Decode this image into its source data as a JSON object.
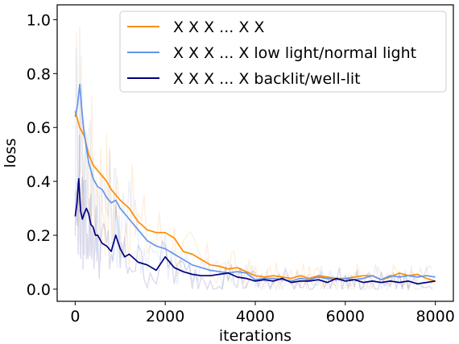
{
  "chart_data": {
    "type": "line",
    "xlabel": "iterations",
    "ylabel": "loss",
    "xlim": [
      -400,
      8400
    ],
    "ylim": [
      -0.045,
      1.055
    ],
    "x_ticks": [
      0,
      2000,
      4000,
      6000,
      8000
    ],
    "y_ticks": [
      0.0,
      0.2,
      0.4,
      0.6,
      0.8,
      1.0
    ],
    "x_tick_labels": [
      "0",
      "2000",
      "4000",
      "6000",
      "8000"
    ],
    "y_tick_labels": [
      "0.0",
      "0.2",
      "0.4",
      "0.6",
      "0.8",
      "1.0"
    ],
    "grid": false,
    "legend_position": "top-right",
    "series": [
      {
        "name": "X X X ... X X",
        "color": "#ff8c00",
        "x": [
          0,
          100,
          200,
          300,
          400,
          500,
          600,
          700,
          800,
          900,
          1000,
          1200,
          1400,
          1600,
          1800,
          2000,
          2200,
          2400,
          2600,
          2800,
          3000,
          3200,
          3400,
          3600,
          3800,
          4000,
          4200,
          4400,
          4600,
          4800,
          5000,
          5200,
          5400,
          5600,
          5800,
          6000,
          6200,
          6400,
          6600,
          6800,
          7000,
          7200,
          7400,
          7600,
          7800,
          8000
        ],
        "values": [
          0.66,
          0.6,
          0.57,
          0.5,
          0.46,
          0.44,
          0.42,
          0.4,
          0.37,
          0.35,
          0.33,
          0.3,
          0.25,
          0.22,
          0.21,
          0.21,
          0.19,
          0.14,
          0.13,
          0.11,
          0.09,
          0.085,
          0.075,
          0.08,
          0.065,
          0.05,
          0.045,
          0.05,
          0.045,
          0.04,
          0.05,
          0.04,
          0.05,
          0.045,
          0.04,
          0.04,
          0.045,
          0.05,
          0.05,
          0.035,
          0.045,
          0.06,
          0.05,
          0.055,
          0.04,
          0.03
        ]
      },
      {
        "name": "X X X ... X low light/normal light",
        "color": "#6495ed",
        "x": [
          0,
          50,
          100,
          150,
          200,
          300,
          400,
          500,
          600,
          700,
          800,
          900,
          1000,
          1200,
          1400,
          1600,
          1800,
          2000,
          2200,
          2400,
          2600,
          2800,
          3000,
          3200,
          3400,
          3600,
          3800,
          4000,
          4200,
          4400,
          4600,
          4800,
          5000,
          5200,
          5400,
          5600,
          5800,
          6000,
          6200,
          6400,
          6600,
          6800,
          7000,
          7200,
          7400,
          7600,
          7800,
          8000
        ],
        "values": [
          0.64,
          0.68,
          0.76,
          0.66,
          0.58,
          0.47,
          0.41,
          0.38,
          0.37,
          0.34,
          0.32,
          0.33,
          0.3,
          0.26,
          0.22,
          0.18,
          0.16,
          0.15,
          0.13,
          0.11,
          0.09,
          0.08,
          0.07,
          0.065,
          0.06,
          0.065,
          0.06,
          0.035,
          0.04,
          0.04,
          0.035,
          0.03,
          0.04,
          0.035,
          0.045,
          0.04,
          0.035,
          0.04,
          0.035,
          0.04,
          0.05,
          0.035,
          0.05,
          0.045,
          0.05,
          0.045,
          0.05,
          0.045
        ]
      },
      {
        "name": "X X X ... X backlit/well-lit",
        "color": "#000080",
        "x": [
          0,
          40,
          80,
          120,
          160,
          200,
          250,
          300,
          350,
          400,
          450,
          500,
          600,
          700,
          800,
          900,
          1000,
          1100,
          1200,
          1400,
          1600,
          1800,
          2000,
          2200,
          2400,
          2600,
          2800,
          3000,
          3200,
          3400,
          3600,
          3800,
          4000,
          4200,
          4400,
          4600,
          4800,
          5000,
          5200,
          5400,
          5600,
          5800,
          6000,
          6200,
          6400,
          6600,
          6800,
          7000,
          7200,
          7400,
          7600,
          7800,
          8000
        ],
        "values": [
          0.27,
          0.32,
          0.41,
          0.29,
          0.26,
          0.28,
          0.3,
          0.28,
          0.24,
          0.23,
          0.2,
          0.2,
          0.17,
          0.16,
          0.14,
          0.2,
          0.15,
          0.12,
          0.13,
          0.1,
          0.09,
          0.07,
          0.12,
          0.08,
          0.065,
          0.055,
          0.05,
          0.05,
          0.055,
          0.06,
          0.045,
          0.04,
          0.03,
          0.035,
          0.03,
          0.04,
          0.025,
          0.03,
          0.03,
          0.035,
          0.025,
          0.04,
          0.03,
          0.035,
          0.025,
          0.03,
          0.025,
          0.03,
          0.025,
          0.03,
          0.02,
          0.025,
          0.03
        ]
      }
    ]
  }
}
